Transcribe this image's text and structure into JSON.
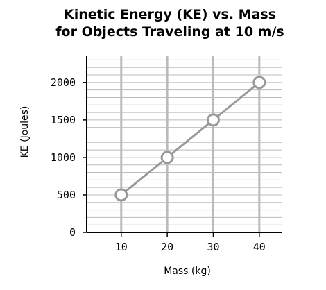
{
  "chart_data": {
    "type": "line",
    "title": [
      "Kinetic Energy (KE) vs. Mass",
      "for Objects Traveling at 10 m/s"
    ],
    "xlabel": "Mass (kg)",
    "ylabel": "KE (Joules)",
    "x": [
      10,
      20,
      30,
      40
    ],
    "series": [
      {
        "values": [
          500,
          1000,
          1500,
          2000
        ]
      }
    ],
    "xlim": [
      2.5,
      45
    ],
    "ylim": [
      0,
      2350
    ],
    "xticks": [
      10,
      20,
      30,
      40
    ],
    "yticks": [
      0,
      500,
      1000,
      1500,
      2000
    ],
    "x_tick_labels": [
      "10",
      "20",
      "30",
      "40"
    ],
    "y_tick_labels": [
      "0",
      "500",
      "1000",
      "1500",
      "2000"
    ],
    "grid": true,
    "minor_grid_step_y": 100,
    "colors": {
      "line": "#999999",
      "marker_fill": "#ffffff",
      "grid": "#bbbbbb",
      "axis": "#000000"
    }
  }
}
